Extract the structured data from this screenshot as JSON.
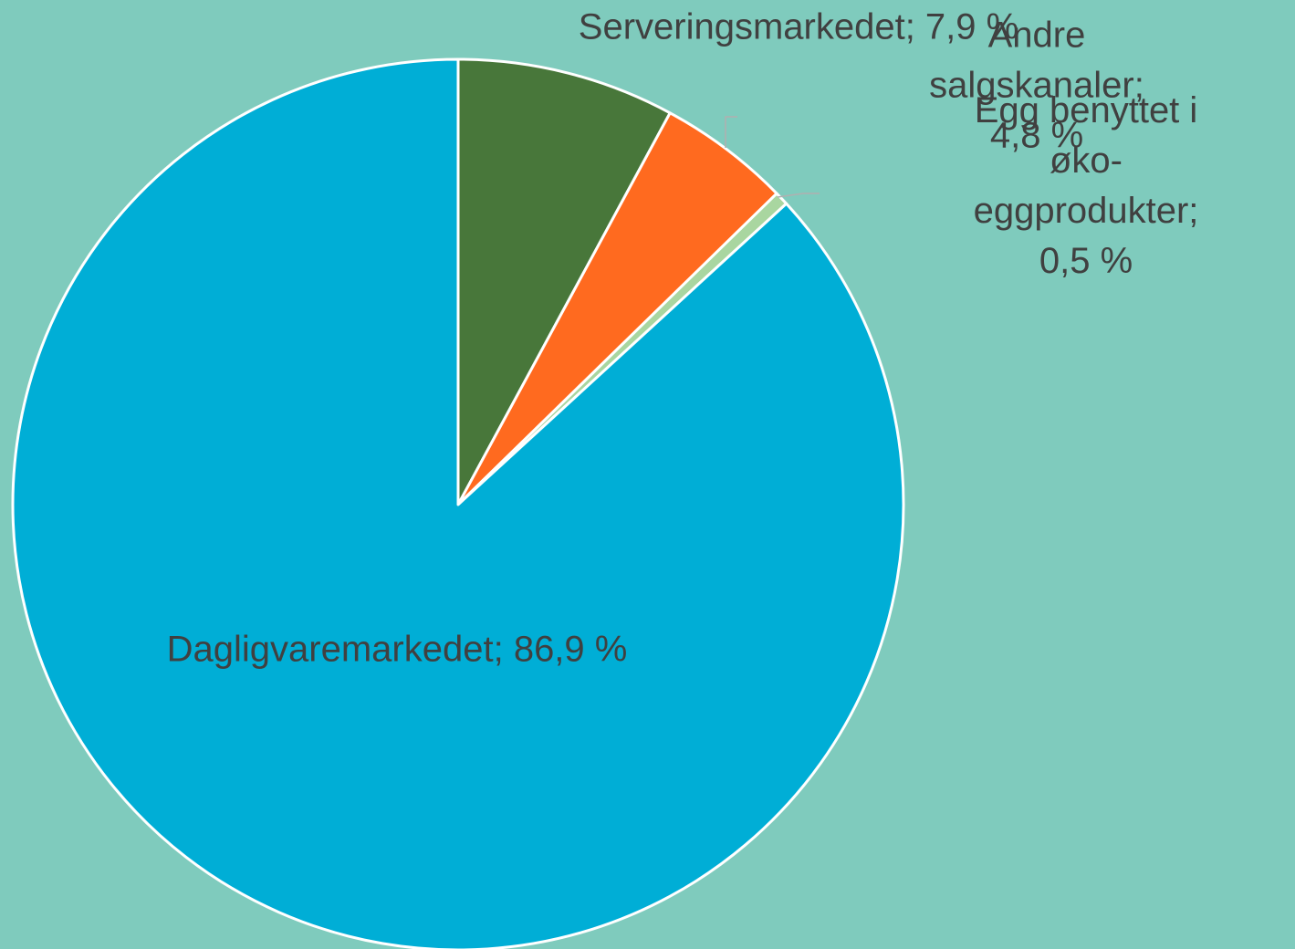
{
  "chart_data": {
    "type": "pie",
    "values": [
      7.9,
      4.8,
      0.5,
      86.9
    ],
    "value_labels": [
      "Serveringsmarkedet; 7,9 %",
      "Andre salgskanaler; 4,8 %",
      "Egg benyttet i øko-\neggprodukter; 0,5 %",
      "Dagligvaremarkedet; 86,9 %"
    ],
    "colors": [
      "#48773a",
      "#ff6a1f",
      "#a9d6a0",
      "#00aed6"
    ]
  }
}
